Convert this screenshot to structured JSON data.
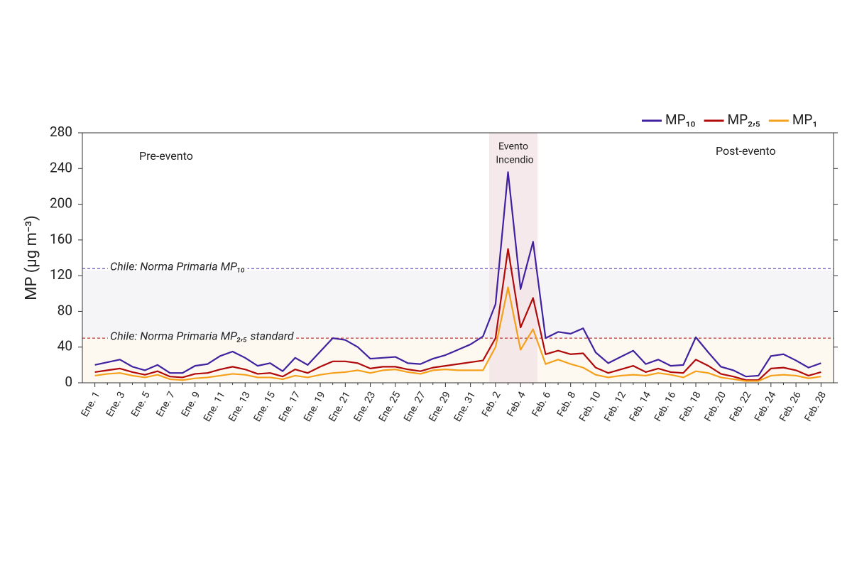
{
  "chart_data": {
    "type": "line",
    "y_label": "MP (µg m⁻³)",
    "categories": [
      "Ene. 1",
      null,
      "Ene. 3",
      null,
      "Ene. 5",
      null,
      "Ene. 7",
      null,
      "Ene. 9",
      null,
      "Ene. 11",
      null,
      "Ene. 13",
      null,
      "Ene. 15",
      null,
      "Ene. 17",
      null,
      "Ene. 19",
      null,
      "Ene. 21",
      null,
      "Ene. 23",
      null,
      "Ene. 25",
      null,
      "Ene. 27",
      null,
      "Ene. 29",
      null,
      "Ene. 31",
      null,
      "Feb. 2",
      null,
      "Feb. 4",
      null,
      "Feb. 6",
      null,
      "Feb. 8",
      null,
      "Feb. 10",
      null,
      "Feb. 12",
      null,
      "Feb. 14",
      null,
      "Feb. 16",
      null,
      "Feb. 18",
      null,
      "Feb. 20",
      null,
      "Feb. 22",
      null,
      "Feb. 24",
      null,
      "Feb. 26",
      null,
      "Feb. 28"
    ],
    "series": [
      {
        "name": "MP₁₀",
        "color": "#4022a0",
        "values": [
          20,
          23,
          26,
          18,
          14,
          20,
          11,
          11,
          19,
          21,
          30,
          35,
          28,
          19,
          22,
          13,
          28,
          20,
          35,
          50,
          48,
          40,
          27,
          28,
          29,
          22,
          21,
          27,
          31,
          37,
          43,
          52,
          88,
          236,
          105,
          158,
          50,
          57,
          55,
          61,
          34,
          22,
          29,
          36,
          21,
          26,
          19,
          20,
          51,
          34,
          18,
          14,
          7,
          8,
          30,
          32,
          25,
          17,
          22
        ]
      },
      {
        "name": "MP₂,₅",
        "color": "#b00a0a",
        "values": [
          12,
          14,
          16,
          12,
          9,
          13,
          7,
          6,
          10,
          11,
          15,
          18,
          15,
          10,
          11,
          7,
          15,
          11,
          18,
          24,
          24,
          22,
          16,
          18,
          18,
          15,
          13,
          17,
          19,
          21,
          23,
          25,
          50,
          150,
          62,
          95,
          32,
          36,
          32,
          33,
          17,
          11,
          15,
          19,
          12,
          16,
          12,
          11,
          26,
          19,
          10,
          7,
          3,
          3,
          16,
          17,
          14,
          8,
          12
        ]
      },
      {
        "name": "MP₁",
        "color": "#f5a01a",
        "values": [
          8,
          10,
          11,
          8,
          6,
          9,
          4,
          3,
          5,
          6,
          8,
          10,
          9,
          6,
          6,
          4,
          8,
          6,
          9,
          11,
          12,
          14,
          11,
          14,
          15,
          12,
          10,
          14,
          15,
          14,
          14,
          14,
          40,
          107,
          37,
          60,
          21,
          26,
          21,
          17,
          9,
          6,
          8,
          9,
          8,
          11,
          9,
          6,
          13,
          11,
          6,
          4,
          2,
          2,
          8,
          9,
          8,
          5,
          7
        ]
      }
    ],
    "reference_lines": [
      {
        "value": 128,
        "label": "Chile: Norma Primaria  MP₁₀",
        "color": "#4022a0"
      },
      {
        "value": 50,
        "label": "Chile: Norma Primaria MP₂,₅ standard",
        "color": "#b00a0a"
      }
    ],
    "annotations": [
      "Pre-evento",
      "Evento",
      "Incendio",
      "Post-evento"
    ],
    "ylim": [
      0,
      280
    ],
    "yticks": [
      0,
      40,
      80,
      120,
      160,
      200,
      240,
      280
    ],
    "legend": "top-right"
  }
}
